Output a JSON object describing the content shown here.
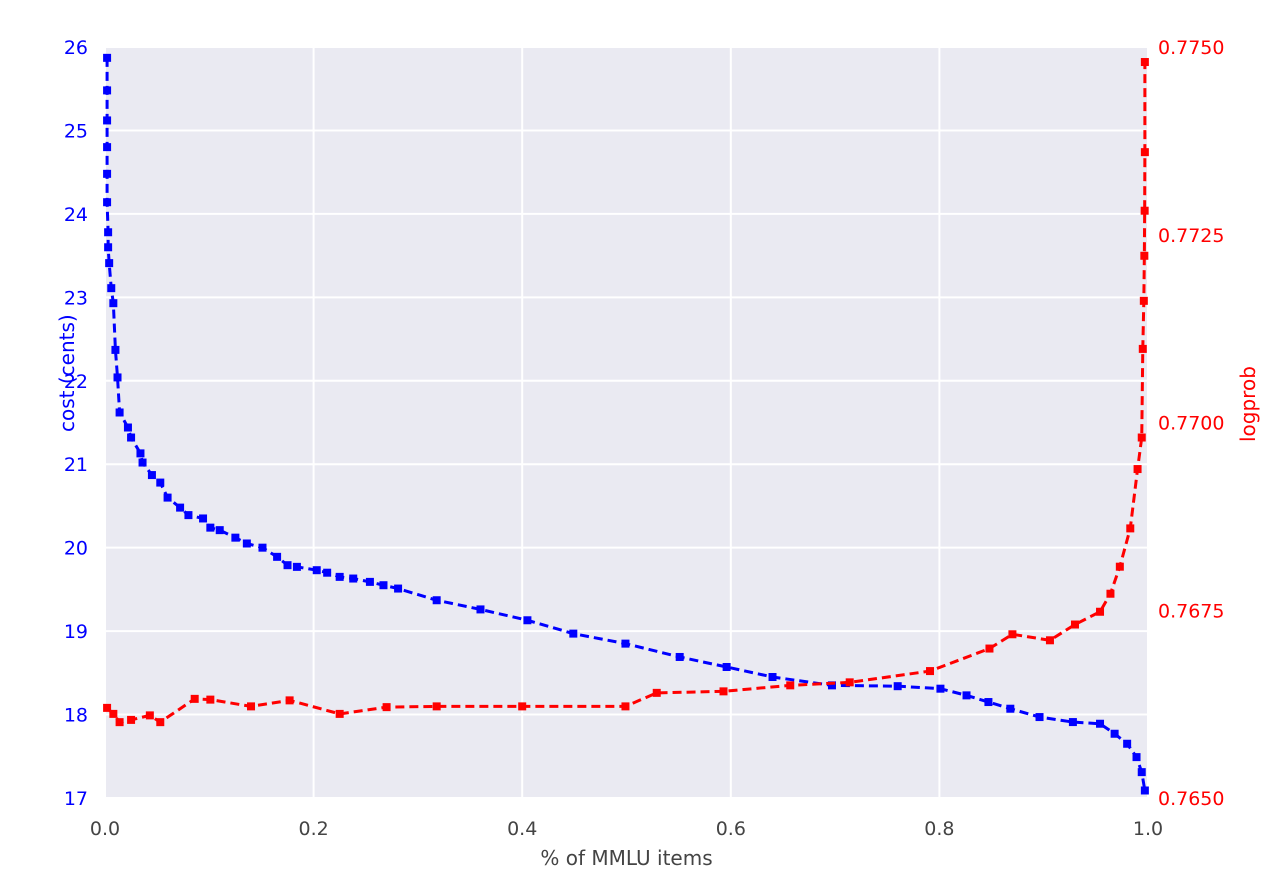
{
  "figure": {
    "background": "#ffffff",
    "plot_background": "#eaeaf2",
    "grid_color": "#ffffff"
  },
  "chart_data": {
    "type": "line",
    "title": "",
    "xlabel": "% of MMLU items",
    "left_ylabel": "cost (cents)",
    "right_ylabel": "logprob",
    "grid": true,
    "legend": "none",
    "xlim": [
      0.0,
      1.0
    ],
    "left_ylim": [
      17,
      26
    ],
    "right_ylim": [
      0.765,
      0.775
    ],
    "x_ticks": [
      {
        "value": 0.0,
        "label": "0.0"
      },
      {
        "value": 0.2,
        "label": "0.2"
      },
      {
        "value": 0.4,
        "label": "0.4"
      },
      {
        "value": 0.6,
        "label": "0.6"
      },
      {
        "value": 0.8,
        "label": "0.8"
      },
      {
        "value": 1.0,
        "label": "1.0"
      }
    ],
    "left_y_ticks": [
      {
        "value": 26,
        "label": "26"
      },
      {
        "value": 25,
        "label": "25"
      },
      {
        "value": 24,
        "label": "24"
      },
      {
        "value": 23,
        "label": "23"
      },
      {
        "value": 22,
        "label": "22"
      },
      {
        "value": 21,
        "label": "21"
      },
      {
        "value": 20,
        "label": "20"
      },
      {
        "value": 19,
        "label": "19"
      },
      {
        "value": 18,
        "label": "18"
      },
      {
        "value": 17,
        "label": "17"
      }
    ],
    "right_y_ticks": [
      {
        "value": 0.775,
        "label": "0.7750"
      },
      {
        "value": 0.7725,
        "label": "0.7725"
      },
      {
        "value": 0.77,
        "label": "0.7700"
      },
      {
        "value": 0.7675,
        "label": "0.7675"
      },
      {
        "value": 0.765,
        "label": "0.7650"
      }
    ],
    "series": [
      {
        "name": "cost (cents)",
        "axis": "left",
        "color": "#0000ff",
        "marker": "square",
        "linestyle": "dashed",
        "points": [
          [
            0.002,
            25.87
          ],
          [
            0.002,
            25.48
          ],
          [
            0.002,
            25.12
          ],
          [
            0.002,
            24.8
          ],
          [
            0.002,
            24.48
          ],
          [
            0.002,
            24.14
          ],
          [
            0.003,
            23.78
          ],
          [
            0.003,
            23.6
          ],
          [
            0.004,
            23.41
          ],
          [
            0.006,
            23.11
          ],
          [
            0.008,
            22.93
          ],
          [
            0.01,
            22.37
          ],
          [
            0.012,
            22.04
          ],
          [
            0.014,
            21.62
          ],
          [
            0.022,
            21.44
          ],
          [
            0.025,
            21.32
          ],
          [
            0.034,
            21.13
          ],
          [
            0.036,
            21.02
          ],
          [
            0.045,
            20.87
          ],
          [
            0.053,
            20.78
          ],
          [
            0.06,
            20.6
          ],
          [
            0.072,
            20.48
          ],
          [
            0.08,
            20.39
          ],
          [
            0.094,
            20.35
          ],
          [
            0.101,
            20.24
          ],
          [
            0.11,
            20.21
          ],
          [
            0.125,
            20.12
          ],
          [
            0.136,
            20.05
          ],
          [
            0.151,
            20.0
          ],
          [
            0.165,
            19.89
          ],
          [
            0.175,
            19.79
          ],
          [
            0.184,
            19.77
          ],
          [
            0.203,
            19.73
          ],
          [
            0.213,
            19.7
          ],
          [
            0.225,
            19.65
          ],
          [
            0.238,
            19.63
          ],
          [
            0.254,
            19.59
          ],
          [
            0.267,
            19.55
          ],
          [
            0.281,
            19.51
          ],
          [
            0.318,
            19.37
          ],
          [
            0.36,
            19.26
          ],
          [
            0.405,
            19.13
          ],
          [
            0.449,
            18.97
          ],
          [
            0.499,
            18.85
          ],
          [
            0.551,
            18.69
          ],
          [
            0.596,
            18.57
          ],
          [
            0.64,
            18.45
          ],
          [
            0.697,
            18.35
          ],
          [
            0.76,
            18.34
          ],
          [
            0.801,
            18.31
          ],
          [
            0.826,
            18.23
          ],
          [
            0.847,
            18.15
          ],
          [
            0.868,
            18.07
          ],
          [
            0.896,
            17.97
          ],
          [
            0.928,
            17.91
          ],
          [
            0.954,
            17.89
          ],
          [
            0.968,
            17.77
          ],
          [
            0.98,
            17.65
          ],
          [
            0.989,
            17.49
          ],
          [
            0.994,
            17.31
          ],
          [
            0.997,
            17.09
          ]
        ]
      },
      {
        "name": "logprob",
        "axis": "right",
        "color": "#ff0000",
        "marker": "square",
        "linestyle": "dashed",
        "points": [
          [
            0.002,
            0.7662
          ],
          [
            0.008,
            0.76612
          ],
          [
            0.014,
            0.76601
          ],
          [
            0.025,
            0.76604
          ],
          [
            0.043,
            0.7661
          ],
          [
            0.053,
            0.76601
          ],
          [
            0.086,
            0.76632
          ],
          [
            0.101,
            0.76631
          ],
          [
            0.14,
            0.76622
          ],
          [
            0.177,
            0.7663
          ],
          [
            0.225,
            0.76612
          ],
          [
            0.27,
            0.76621
          ],
          [
            0.318,
            0.76622
          ],
          [
            0.4,
            0.76622
          ],
          [
            0.499,
            0.76622
          ],
          [
            0.529,
            0.7664
          ],
          [
            0.593,
            0.76642
          ],
          [
            0.657,
            0.7665
          ],
          [
            0.714,
            0.76654
          ],
          [
            0.791,
            0.76669
          ],
          [
            0.848,
            0.76699
          ],
          [
            0.87,
            0.76718
          ],
          [
            0.906,
            0.7671
          ],
          [
            0.93,
            0.76731
          ],
          [
            0.954,
            0.76748
          ],
          [
            0.964,
            0.76772
          ],
          [
            0.973,
            0.76808
          ],
          [
            0.983,
            0.76859
          ],
          [
            0.99,
            0.76938
          ],
          [
            0.994,
            0.7698
          ],
          [
            0.995,
            0.77098
          ],
          [
            0.996,
            0.77162
          ],
          [
            0.9965,
            0.77222
          ],
          [
            0.9968,
            0.77282
          ],
          [
            0.997,
            0.7736
          ],
          [
            0.997,
            0.7748
          ]
        ]
      }
    ]
  }
}
